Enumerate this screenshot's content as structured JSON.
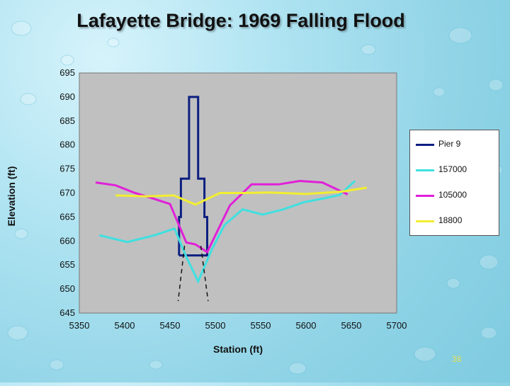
{
  "slide": {
    "title": "Lafayette Bridge: 1969 Falling Flood",
    "page_number": "38"
  },
  "colors": {
    "plot_area": "#c0c0c0",
    "pier": "#0d1f80",
    "157000": "#3fe0e0",
    "105000": "#e020d8",
    "18800": "#f2ee30"
  },
  "chart_data": {
    "type": "line",
    "xlabel": "Station (ft)",
    "ylabel": "Elevation (ft)",
    "xlim": [
      5350,
      5700
    ],
    "ylim": [
      645,
      695
    ],
    "xticks": [
      5350,
      5400,
      5450,
      5500,
      5550,
      5600,
      5650,
      5700
    ],
    "yticks": [
      645,
      650,
      655,
      660,
      665,
      670,
      675,
      680,
      685,
      690,
      695
    ],
    "grid": false,
    "legend_position": "right",
    "series": [
      {
        "name": "Pier 9",
        "color": "#0d1f80",
        "points": [
          [
            5460,
            657
          ],
          [
            5460,
            665
          ],
          [
            5462,
            665
          ],
          [
            5462,
            673
          ],
          [
            5471,
            673
          ],
          [
            5471,
            690
          ],
          [
            5481,
            690
          ],
          [
            5481,
            673
          ],
          [
            5488,
            673
          ],
          [
            5488,
            665
          ],
          [
            5491,
            665
          ],
          [
            5491,
            657
          ],
          [
            5460,
            657
          ]
        ]
      },
      {
        "name": "157000",
        "color": "#3fe0e0",
        "points": [
          [
            5372,
            661.2
          ],
          [
            5403,
            659.8
          ],
          [
            5433,
            661.2
          ],
          [
            5455,
            662.6
          ],
          [
            5468,
            656.7
          ],
          [
            5481,
            651.6
          ],
          [
            5496,
            658.2
          ],
          [
            5510,
            663.3
          ],
          [
            5530,
            666.6
          ],
          [
            5552,
            665.5
          ],
          [
            5575,
            666.6
          ],
          [
            5598,
            668.1
          ],
          [
            5620,
            668.9
          ],
          [
            5637,
            669.6
          ],
          [
            5654,
            672.5
          ]
        ]
      },
      {
        "name": "105000",
        "color": "#e020d8",
        "points": [
          [
            5368,
            672.2
          ],
          [
            5390,
            671.6
          ],
          [
            5410,
            670.1
          ],
          [
            5432,
            668.8
          ],
          [
            5450,
            667.7
          ],
          [
            5468,
            659.7
          ],
          [
            5478,
            659.3
          ],
          [
            5491,
            657.7
          ],
          [
            5516,
            667.4
          ],
          [
            5540,
            671.8
          ],
          [
            5570,
            671.8
          ],
          [
            5593,
            672.5
          ],
          [
            5618,
            672.2
          ],
          [
            5646,
            669.7
          ]
        ]
      },
      {
        "name": "18800",
        "color": "#f2ee30",
        "points": [
          [
            5390,
            669.5
          ],
          [
            5425,
            669.3
          ],
          [
            5454,
            669.5
          ],
          [
            5478,
            667.6
          ],
          [
            5505,
            670.0
          ],
          [
            5530,
            670.0
          ],
          [
            5560,
            670.1
          ],
          [
            5600,
            669.8
          ],
          [
            5640,
            670.3
          ],
          [
            5667,
            671.1
          ]
        ]
      }
    ],
    "annotations": [
      {
        "name": "pile-line-left",
        "style": "dashed",
        "points": [
          [
            5466,
            659
          ],
          [
            5459,
            647.5
          ]
        ]
      },
      {
        "name": "pile-line-right",
        "style": "dashed",
        "points": [
          [
            5484,
            659
          ],
          [
            5492,
            647.5
          ]
        ]
      }
    ]
  }
}
